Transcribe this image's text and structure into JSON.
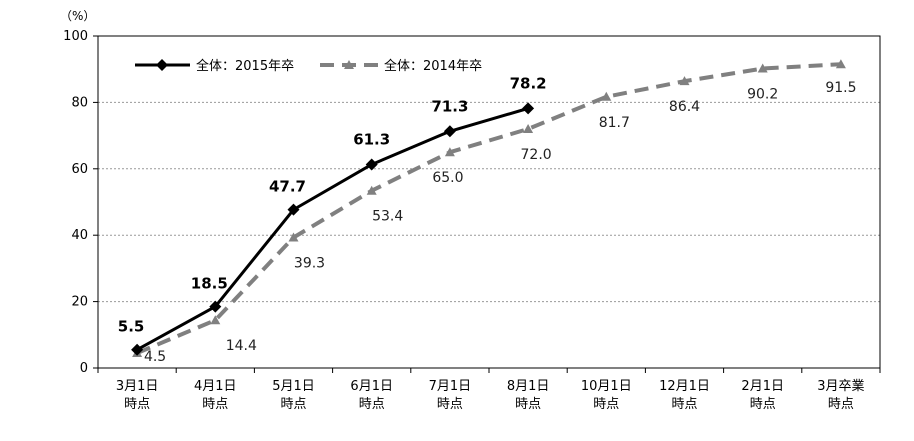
{
  "chart_data": {
    "type": "line",
    "unit_label": "（%）",
    "ylim": [
      0,
      100
    ],
    "yticks": [
      0,
      20,
      40,
      60,
      80,
      100
    ],
    "grid": true,
    "legend_position": "top-left",
    "categories": [
      [
        "3月1日",
        "時点"
      ],
      [
        "4月1日",
        "時点"
      ],
      [
        "5月1日",
        "時点"
      ],
      [
        "6月1日",
        "時点"
      ],
      [
        "7月1日",
        "時点"
      ],
      [
        "8月1日",
        "時点"
      ],
      [
        "10月1日",
        "時点"
      ],
      [
        "12月1日",
        "時点"
      ],
      [
        "2月1日",
        "時点"
      ],
      [
        "3月卒業",
        "時点"
      ]
    ],
    "series": [
      {
        "name": "全体：2015年卒",
        "color": "#000000",
        "style": "solid",
        "marker": "diamond",
        "values": [
          5.5,
          18.5,
          47.7,
          61.3,
          71.3,
          78.2,
          null,
          null,
          null,
          null
        ]
      },
      {
        "name": "全体：2014年卒",
        "color": "#808080",
        "style": "dashed",
        "marker": "triangle",
        "values": [
          4.5,
          14.4,
          39.3,
          53.4,
          65.0,
          72.0,
          81.7,
          86.4,
          90.2,
          91.5
        ]
      }
    ],
    "labels_2015": [
      "5.5",
      "18.5",
      "47.7",
      "61.3",
      "71.3",
      "78.2"
    ],
    "labels_2014": [
      "4.5",
      "14.4",
      "39.3",
      "53.4",
      "65.0",
      "72.0",
      "81.7",
      "86.4",
      "90.2",
      "91.5"
    ]
  }
}
